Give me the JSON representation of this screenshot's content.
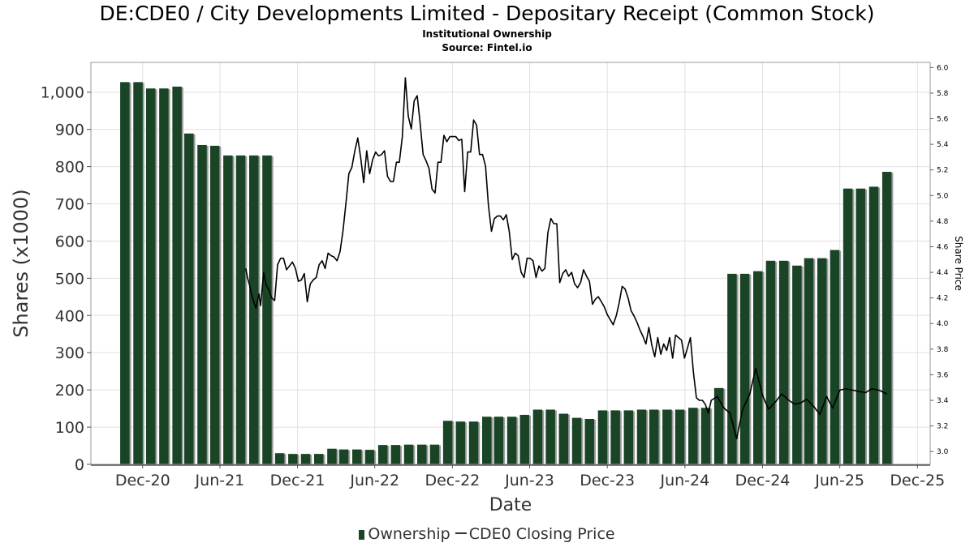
{
  "title": "DE:CDE0 / City Developments Limited - Depositary Receipt (Common Stock)",
  "subtitle1": "Institutional Ownership",
  "subtitle2": "Source: Fintel.io",
  "colors": {
    "bar": "#1a4426",
    "bar_shadow": "#9a9a9a",
    "line": "#000000",
    "grid": "#e0e0e0"
  },
  "legend": {
    "ownership": "Ownership",
    "price": "CDE0 Closing Price"
  },
  "chart_data": {
    "type": "bar",
    "xlabel": "Date",
    "ylabel": "Shares (x1000)",
    "y2label": "Share Price",
    "xlim": [
      "2020-08-01",
      "2025-12-31"
    ],
    "ylim": [
      0,
      1080
    ],
    "y2lim": [
      2.9,
      6.04
    ],
    "x_ticks": [
      {
        "date": "2020-12-01",
        "label": "Dec-20"
      },
      {
        "date": "2021-06-01",
        "label": "Jun-21"
      },
      {
        "date": "2021-12-01",
        "label": "Dec-21"
      },
      {
        "date": "2022-06-01",
        "label": "Jun-22"
      },
      {
        "date": "2022-12-01",
        "label": "Dec-22"
      },
      {
        "date": "2023-06-01",
        "label": "Jun-23"
      },
      {
        "date": "2023-12-01",
        "label": "Dec-23"
      },
      {
        "date": "2024-06-01",
        "label": "Jun-24"
      },
      {
        "date": "2024-12-01",
        "label": "Dec-24"
      },
      {
        "date": "2025-06-01",
        "label": "Jun-25"
      },
      {
        "date": "2025-12-01",
        "label": "Dec-25"
      }
    ],
    "y_ticks": [
      {
        "value": 0,
        "label": "0"
      },
      {
        "value": 100,
        "label": "100"
      },
      {
        "value": 200,
        "label": "200"
      },
      {
        "value": 300,
        "label": "300"
      },
      {
        "value": 400,
        "label": "400"
      },
      {
        "value": 500,
        "label": "500"
      },
      {
        "value": 600,
        "label": "600"
      },
      {
        "value": 700,
        "label": "700"
      },
      {
        "value": 800,
        "label": "800"
      },
      {
        "value": 900,
        "label": "900"
      },
      {
        "value": 1000,
        "label": "1,000"
      }
    ],
    "y2_ticks": [
      {
        "value": 3.0,
        "label": "3.0"
      },
      {
        "value": 3.2,
        "label": "3.2"
      },
      {
        "value": 3.4,
        "label": "3.4"
      },
      {
        "value": 3.6,
        "label": "3.6"
      },
      {
        "value": 3.8,
        "label": "3.8"
      },
      {
        "value": 4.0,
        "label": "4.0"
      },
      {
        "value": 4.2,
        "label": "4.2"
      },
      {
        "value": 4.4,
        "label": "4.4"
      },
      {
        "value": 4.6,
        "label": "4.6"
      },
      {
        "value": 4.8,
        "label": "4.8"
      },
      {
        "value": 5.0,
        "label": "5.0"
      },
      {
        "value": 5.2,
        "label": "5.2"
      },
      {
        "value": 5.4,
        "label": "5.4"
      },
      {
        "value": 5.6,
        "label": "5.6"
      },
      {
        "value": 5.8,
        "label": "5.8"
      },
      {
        "value": 6.0,
        "label": "6.0"
      }
    ],
    "ownership": {
      "x": [
        "2020-10-20",
        "2020-11-20",
        "2020-12-20",
        "2021-01-20",
        "2021-02-20",
        "2021-03-20",
        "2021-04-20",
        "2021-05-20",
        "2021-06-20",
        "2021-07-20",
        "2021-08-20",
        "2021-09-20",
        "2021-10-20",
        "2021-11-20",
        "2021-12-20",
        "2022-01-20",
        "2022-02-20",
        "2022-03-20",
        "2022-04-20",
        "2022-05-20",
        "2022-06-20",
        "2022-07-20",
        "2022-08-20",
        "2022-09-20",
        "2022-10-20",
        "2022-11-20",
        "2022-12-20",
        "2023-01-20",
        "2023-02-20",
        "2023-03-20",
        "2023-04-20",
        "2023-05-20",
        "2023-06-20",
        "2023-07-20",
        "2023-08-20",
        "2023-09-20",
        "2023-10-20",
        "2023-11-20",
        "2023-12-20",
        "2024-01-20",
        "2024-02-20",
        "2024-03-20",
        "2024-04-20",
        "2024-05-20",
        "2024-06-20",
        "2024-07-20",
        "2024-08-20",
        "2024-09-20",
        "2024-10-20",
        "2024-11-20",
        "2024-12-20",
        "2025-01-20",
        "2025-02-20",
        "2025-03-20",
        "2025-04-20",
        "2025-05-20",
        "2025-06-20",
        "2025-07-20",
        "2025-08-20",
        "2025-09-20"
      ],
      "values": [
        1027,
        1027,
        1010,
        1010,
        1015,
        889,
        858,
        856,
        830,
        830,
        830,
        830,
        30,
        28,
        28,
        28,
        42,
        40,
        40,
        39,
        52,
        52,
        53,
        53,
        53,
        117,
        115,
        115,
        128,
        128,
        128,
        133,
        147,
        147,
        136,
        125,
        122,
        145,
        145,
        145,
        147,
        147,
        147,
        147,
        152,
        152,
        205,
        512,
        512,
        519,
        547,
        547,
        534,
        554,
        554,
        576,
        741,
        741,
        746,
        786
      ]
    },
    "price": {
      "x": [
        "2021-08-01",
        "2021-08-05",
        "2021-08-10",
        "2021-08-15",
        "2021-08-20",
        "2021-08-25",
        "2021-09-01",
        "2021-09-05",
        "2021-09-12",
        "2021-09-18",
        "2021-09-25",
        "2021-10-01",
        "2021-10-08",
        "2021-10-15",
        "2021-10-22",
        "2021-10-29",
        "2021-11-05",
        "2021-11-12",
        "2021-11-19",
        "2021-11-26",
        "2021-12-03",
        "2021-12-10",
        "2021-12-17",
        "2021-12-24",
        "2021-12-31",
        "2022-01-07",
        "2022-01-14",
        "2022-01-21",
        "2022-01-28",
        "2022-02-04",
        "2022-02-11",
        "2022-02-18",
        "2022-02-25",
        "2022-03-04",
        "2022-03-11",
        "2022-03-18",
        "2022-03-25",
        "2022-04-01",
        "2022-04-08",
        "2022-04-15",
        "2022-04-22",
        "2022-04-29",
        "2022-05-06",
        "2022-05-13",
        "2022-05-20",
        "2022-05-27",
        "2022-06-03",
        "2022-06-10",
        "2022-06-17",
        "2022-06-24",
        "2022-07-01",
        "2022-07-08",
        "2022-07-15",
        "2022-07-22",
        "2022-07-29",
        "2022-08-05",
        "2022-08-12",
        "2022-08-19",
        "2022-08-26",
        "2022-09-02",
        "2022-09-09",
        "2022-09-16",
        "2022-09-23",
        "2022-09-30",
        "2022-10-07",
        "2022-10-14",
        "2022-10-21",
        "2022-10-28",
        "2022-11-04",
        "2022-11-11",
        "2022-11-18",
        "2022-11-25",
        "2022-12-02",
        "2022-12-09",
        "2022-12-16",
        "2022-12-23",
        "2022-12-30",
        "2023-01-06",
        "2023-01-13",
        "2023-01-20",
        "2023-01-27",
        "2023-02-03",
        "2023-02-10",
        "2023-02-17",
        "2023-02-24",
        "2023-03-03",
        "2023-03-10",
        "2023-03-17",
        "2023-03-24",
        "2023-03-31",
        "2023-04-07",
        "2023-04-14",
        "2023-04-21",
        "2023-04-28",
        "2023-05-05",
        "2023-05-12",
        "2023-05-19",
        "2023-05-26",
        "2023-06-02",
        "2023-06-09",
        "2023-06-16",
        "2023-06-23",
        "2023-06-30",
        "2023-07-07",
        "2023-07-14",
        "2023-07-21",
        "2023-07-28",
        "2023-08-04",
        "2023-08-11",
        "2023-08-18",
        "2023-08-25",
        "2023-09-01",
        "2023-09-08",
        "2023-09-15",
        "2023-09-22",
        "2023-09-29",
        "2023-10-06",
        "2023-10-13",
        "2023-10-20",
        "2023-10-27",
        "2023-11-03",
        "2023-11-10",
        "2023-11-17",
        "2023-11-24",
        "2023-12-01",
        "2023-12-08",
        "2023-12-15",
        "2023-12-22",
        "2023-12-29",
        "2024-01-05",
        "2024-01-12",
        "2024-01-19",
        "2024-01-26",
        "2024-02-02",
        "2024-02-09",
        "2024-02-16",
        "2024-02-23",
        "2024-03-01",
        "2024-03-08",
        "2024-03-15",
        "2024-03-22",
        "2024-03-29",
        "2024-04-05",
        "2024-04-12",
        "2024-04-19",
        "2024-04-26",
        "2024-05-03",
        "2024-05-10",
        "2024-05-17",
        "2024-05-24",
        "2024-05-31",
        "2024-06-07",
        "2024-06-14",
        "2024-06-21",
        "2024-06-28",
        "2024-07-05",
        "2024-07-12",
        "2024-07-19",
        "2024-07-26",
        "2024-08-02",
        "2024-08-16",
        "2024-09-01",
        "2024-09-15",
        "2024-10-01",
        "2024-10-15",
        "2024-11-01",
        "2024-11-15",
        "2024-12-01",
        "2024-12-15",
        "2025-01-01",
        "2025-01-15",
        "2025-02-01",
        "2025-02-15",
        "2025-03-01",
        "2025-03-15",
        "2025-04-01",
        "2025-04-15",
        "2025-05-01",
        "2025-05-15",
        "2025-06-01",
        "2025-06-15",
        "2025-07-01",
        "2025-07-15",
        "2025-08-01",
        "2025-08-15",
        "2025-09-01",
        "2025-09-20"
      ],
      "values": [
        4.43,
        4.36,
        4.3,
        4.22,
        4.17,
        4.12,
        4.23,
        4.14,
        4.4,
        4.3,
        4.26,
        4.2,
        4.18,
        4.46,
        4.51,
        4.51,
        4.42,
        4.45,
        4.48,
        4.43,
        4.33,
        4.34,
        4.39,
        4.17,
        4.31,
        4.34,
        4.36,
        4.46,
        4.49,
        4.43,
        4.55,
        4.53,
        4.52,
        4.49,
        4.56,
        4.72,
        4.94,
        5.17,
        5.22,
        5.35,
        5.45,
        5.29,
        5.1,
        5.35,
        5.17,
        5.28,
        5.34,
        5.31,
        5.32,
        5.35,
        5.15,
        5.11,
        5.11,
        5.26,
        5.26,
        5.46,
        5.92,
        5.62,
        5.52,
        5.74,
        5.78,
        5.56,
        5.32,
        5.27,
        5.21,
        5.05,
        5.02,
        5.26,
        5.26,
        5.47,
        5.42,
        5.46,
        5.46,
        5.46,
        5.43,
        5.44,
        5.03,
        5.34,
        5.34,
        5.59,
        5.55,
        5.32,
        5.32,
        5.23,
        4.92,
        4.72,
        4.82,
        4.84,
        4.84,
        4.81,
        4.85,
        4.72,
        4.5,
        4.55,
        4.53,
        4.4,
        4.36,
        4.51,
        4.51,
        4.49,
        4.36,
        4.45,
        4.41,
        4.43,
        4.71,
        4.82,
        4.78,
        4.78,
        4.32,
        4.39,
        4.42,
        4.37,
        4.4,
        4.31,
        4.28,
        4.32,
        4.42,
        4.37,
        4.33,
        4.15,
        4.19,
        4.21,
        4.17,
        4.13,
        4.07,
        4.03,
        3.99,
        4.06,
        4.16,
        4.29,
        4.27,
        4.2,
        4.1,
        4.06,
        4.01,
        3.95,
        3.9,
        3.84,
        3.97,
        3.83,
        3.74,
        3.89,
        3.76,
        3.84,
        3.79,
        3.89,
        3.73,
        3.91,
        3.89,
        3.87,
        3.73,
        3.81,
        3.89,
        3.62,
        3.42,
        3.4,
        3.4,
        3.37,
        3.3,
        3.4,
        3.43,
        3.34,
        3.3,
        3.1,
        3.33,
        3.45,
        3.65,
        3.44,
        3.33,
        3.39,
        3.45,
        3.4,
        3.37,
        3.38,
        3.41,
        3.35,
        3.29,
        3.43,
        3.34,
        3.48,
        3.49,
        3.48,
        3.47,
        3.46,
        3.49,
        3.48,
        3.45
      ]
    }
  }
}
